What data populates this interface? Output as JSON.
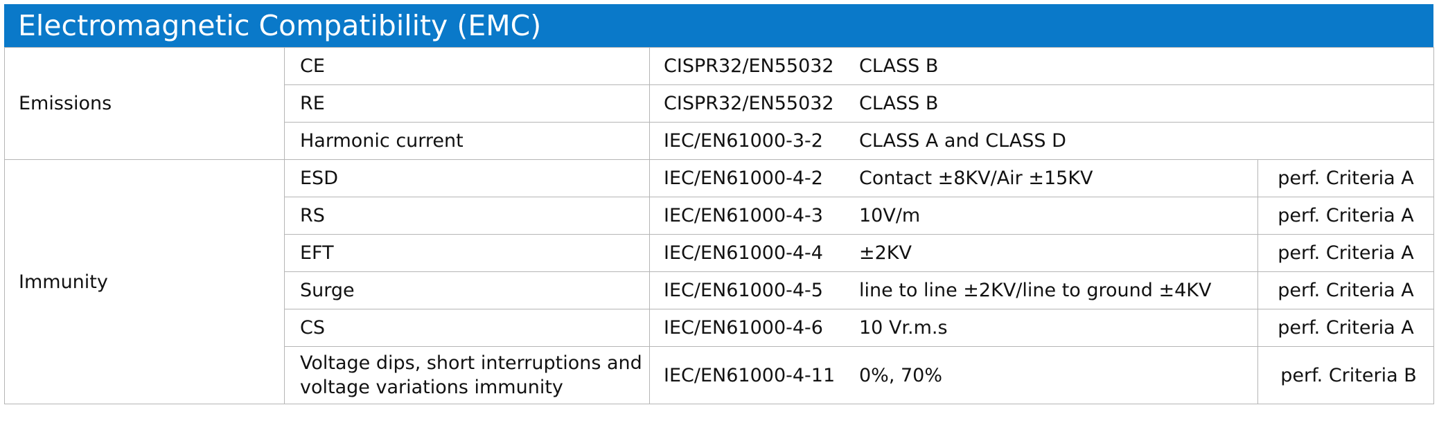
{
  "title": "Electromagnetic Compatibility (EMC)",
  "groups": [
    {
      "name": "Emissions",
      "rows": [
        {
          "item": "CE",
          "standard": "CISPR32/EN55032",
          "spec": "CLASS B",
          "perf": ""
        },
        {
          "item": "RE",
          "standard": "CISPR32/EN55032",
          "spec": "CLASS B",
          "perf": ""
        },
        {
          "item": "Harmonic current",
          "standard": "IEC/EN61000-3-2",
          "spec": "CLASS A and CLASS D",
          "perf": ""
        }
      ]
    },
    {
      "name": "Immunity",
      "rows": [
        {
          "item": "ESD",
          "standard": "IEC/EN61000-4-2",
          "spec": "Contact ±8KV/Air ±15KV",
          "perf": "perf. Criteria A"
        },
        {
          "item": "RS",
          "standard": "IEC/EN61000-4-3",
          "spec": "10V/m",
          "perf": "perf. Criteria A"
        },
        {
          "item": "EFT",
          "standard": "IEC/EN61000-4-4",
          "spec": "±2KV",
          "perf": "perf. Criteria A"
        },
        {
          "item": "Surge",
          "standard": "IEC/EN61000-4-5",
          "spec": "line to line ±2KV/line to ground ±4KV",
          "perf": "perf. Criteria A"
        },
        {
          "item": "CS",
          "standard": "IEC/EN61000-4-6",
          "spec": "10 Vr.m.s",
          "perf": "perf. Criteria A"
        },
        {
          "item": "Voltage dips, short interruptions and voltage variations immunity",
          "standard": "IEC/EN61000-4-11",
          "spec": "0%, 70%",
          "perf": "perf. Criteria B"
        }
      ]
    }
  ]
}
